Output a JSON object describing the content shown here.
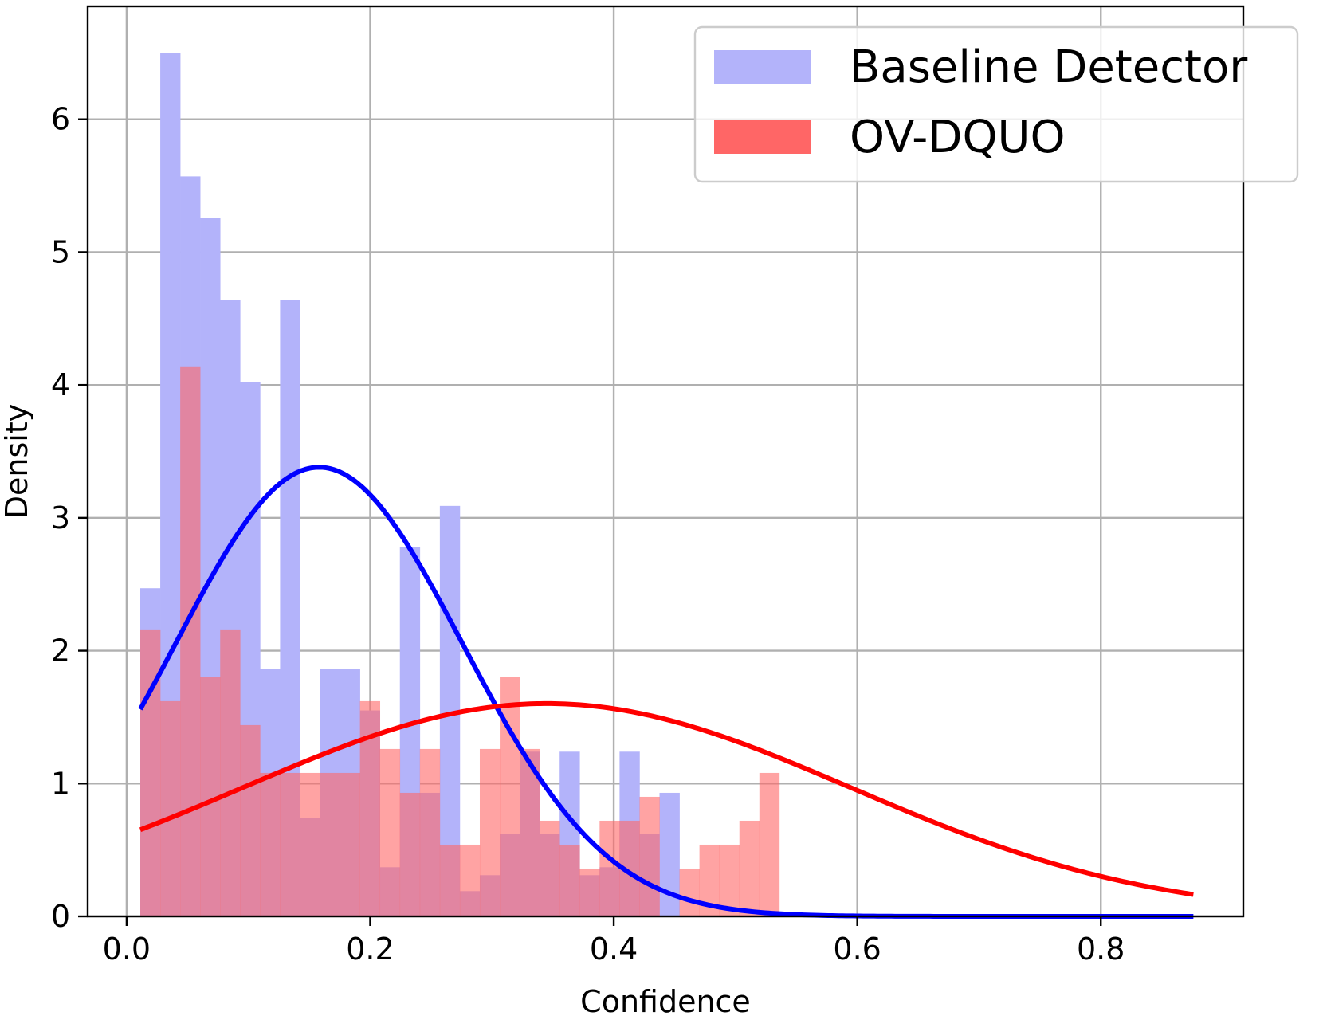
{
  "chart_data": {
    "type": "bar",
    "title": "",
    "xlabel": "Confidence",
    "ylabel": "Density",
    "xlim": [
      -0.032,
      0.917
    ],
    "ylim": [
      0,
      6.85
    ],
    "grid": true,
    "legend_position": "top-right",
    "x_ticks": [
      {
        "value": 0.0,
        "label": "0.0"
      },
      {
        "value": 0.2,
        "label": "0.2"
      },
      {
        "value": 0.4,
        "label": "0.4"
      },
      {
        "value": 0.6,
        "label": "0.6"
      },
      {
        "value": 0.8,
        "label": "0.8"
      }
    ],
    "y_ticks": [
      {
        "value": 0,
        "label": "0"
      },
      {
        "value": 1,
        "label": "1"
      },
      {
        "value": 2,
        "label": "2"
      },
      {
        "value": 3,
        "label": "3"
      },
      {
        "value": 4,
        "label": "4"
      },
      {
        "value": 5,
        "label": "5"
      },
      {
        "value": 6,
        "label": "6"
      }
    ],
    "series": [
      {
        "name": "Baseline Detector",
        "kind": "histogram",
        "color": "#b3b3fa",
        "bin_start": 0.0112,
        "bin_width": 0.0164,
        "values": [
          2.47,
          6.5,
          5.57,
          5.26,
          4.64,
          4.02,
          1.86,
          4.64,
          0.74,
          1.86,
          1.86,
          1.55,
          0.37,
          2.78,
          0.93,
          3.09,
          0.19,
          0.31,
          0.62,
          1.24,
          0.62,
          1.24,
          0.31,
          0.37,
          1.24,
          0.62,
          0.93
        ]
      },
      {
        "name": "OV-DQUO",
        "kind": "histogram",
        "color": "#ff6666",
        "bin_start": 0.0112,
        "bin_width": 0.0164,
        "values": [
          2.16,
          1.62,
          4.14,
          1.8,
          2.16,
          1.44,
          1.08,
          1.08,
          1.08,
          1.08,
          1.08,
          1.62,
          1.26,
          0.93,
          1.26,
          0.54,
          0.54,
          1.26,
          1.8,
          1.26,
          0.72,
          0.54,
          0.36,
          0.72,
          0.72,
          0.9,
          0.0,
          0.36,
          0.54,
          0.54,
          0.72,
          1.08
        ]
      },
      {
        "name": "Baseline fit",
        "kind": "normal_curve",
        "color": "#0000ff",
        "mean": 0.158,
        "std": 0.118,
        "x_range": [
          0.0112,
          0.876
        ]
      },
      {
        "name": "OV-DQUO fit",
        "kind": "normal_curve",
        "color": "#ff0000",
        "mean": 0.345,
        "std": 0.249,
        "x_range": [
          0.0112,
          0.876
        ]
      }
    ],
    "legend": [
      {
        "label": "Baseline Detector",
        "color": "#b3b3fa"
      },
      {
        "label": "OV-DQUO",
        "color": "#ff6666"
      }
    ]
  }
}
